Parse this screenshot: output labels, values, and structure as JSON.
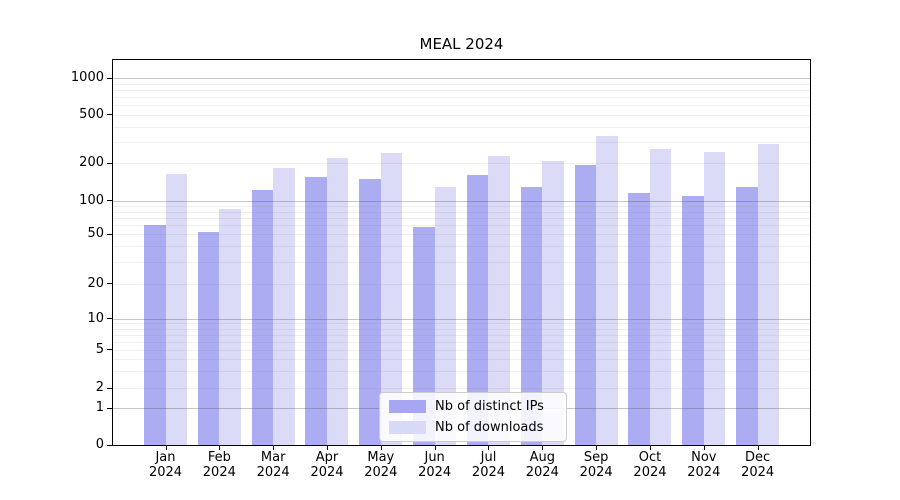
{
  "title": "MEAL 2024",
  "legend": {
    "items": [
      {
        "label": "Nb of distinct IPs",
        "color": "#a6a6f2"
      },
      {
        "label": "Nb of downloads",
        "color": "#d8d8f7"
      }
    ]
  },
  "chart_data": {
    "type": "bar",
    "title": "MEAL 2024",
    "categories": [
      "Jan",
      "Feb",
      "Mar",
      "Apr",
      "May",
      "Jun",
      "Jul",
      "Aug",
      "Sep",
      "Oct",
      "Nov",
      "Dec"
    ],
    "category_year": "2024",
    "series": [
      {
        "name": "Nb of distinct IPs",
        "color": "#a6a6f2",
        "values": [
          60,
          52,
          122,
          155,
          150,
          58,
          160,
          130,
          195,
          115,
          110,
          130
        ]
      },
      {
        "name": "Nb of downloads",
        "color": "#d8d8f7",
        "values": [
          165,
          85,
          185,
          220,
          245,
          130,
          230,
          210,
          335,
          260,
          250,
          290
        ]
      }
    ],
    "xlabel": "",
    "ylabel": "",
    "yscale": "symlog",
    "yticks": [
      0,
      1,
      2,
      5,
      10,
      20,
      50,
      100,
      200,
      500,
      1000
    ],
    "major_gridlines": [
      1,
      10,
      100,
      1000
    ],
    "minor_gridlines": [
      3,
      4,
      6,
      7,
      8,
      9,
      30,
      40,
      60,
      70,
      80,
      90,
      300,
      400,
      600,
      700,
      800,
      900
    ],
    "ylim": [
      0,
      1200
    ],
    "grid": true,
    "legend_position": "lower center"
  }
}
